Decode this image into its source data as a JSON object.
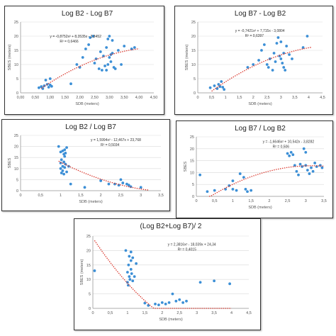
{
  "chart_data": [
    {
      "type": "scatter",
      "title": "Log B2 - Log B7",
      "xlabel": "SDB (meters)",
      "ylabel": "SBES (meters)",
      "xlim": [
        0,
        4.5
      ],
      "ylim": [
        0,
        25
      ],
      "xticks": [
        "0,00",
        "0,50",
        "1,00",
        "1,50",
        "2,00",
        "2,50",
        "3,00",
        "3,50",
        "4,00",
        "4,50"
      ],
      "yticks": [
        "0",
        "5",
        "10",
        "15",
        "20",
        "25"
      ],
      "trend": {
        "a": -0.8752,
        "b": 8.3535,
        "c": -3.8452,
        "xmin": 0.7,
        "xmax": 4.0
      },
      "annotations": [
        "y = -0,8752x² + 8,3535x - 3,8452",
        "R² = 0,6466"
      ],
      "points": [
        [
          0.62,
          1.8
        ],
        [
          0.7,
          2.2
        ],
        [
          0.75,
          1.5
        ],
        [
          0.8,
          2.5
        ],
        [
          0.85,
          4.5
        ],
        [
          0.9,
          3.0
        ],
        [
          0.95,
          2.0
        ],
        [
          1.0,
          2.8
        ],
        [
          1.05,
          2.3
        ],
        [
          1.0,
          5.0
        ],
        [
          1.7,
          3.2
        ],
        [
          1.9,
          10.0
        ],
        [
          2.0,
          9.0
        ],
        [
          2.1,
          12.5
        ],
        [
          2.2,
          15.5
        ],
        [
          2.3,
          17.0
        ],
        [
          2.35,
          19.5
        ],
        [
          2.45,
          20.0
        ],
        [
          2.5,
          10.5
        ],
        [
          2.55,
          12.0
        ],
        [
          2.65,
          8.5
        ],
        [
          2.7,
          14.5
        ],
        [
          2.75,
          8.0
        ],
        [
          2.8,
          13.0
        ],
        [
          2.85,
          9.5
        ],
        [
          2.9,
          16.0
        ],
        [
          2.95,
          19.0
        ],
        [
          3.0,
          20.0
        ],
        [
          3.0,
          12.5
        ],
        [
          3.05,
          13.5
        ],
        [
          3.1,
          14.0
        ],
        [
          3.05,
          11.0
        ],
        [
          3.1,
          18.5
        ],
        [
          3.15,
          9.0
        ],
        [
          2.9,
          8.0
        ],
        [
          2.95,
          10.0
        ],
        [
          3.2,
          8.5
        ],
        [
          3.3,
          15.0
        ],
        [
          3.4,
          10.0
        ],
        [
          3.5,
          16.5
        ],
        [
          3.75,
          15.5
        ],
        [
          3.85,
          16.0
        ]
      ]
    },
    {
      "type": "scatter",
      "title": "Log B7 - Log B2",
      "xlabel": "SDB (meters)",
      "ylabel": "SBES (meters)",
      "xlim": [
        0,
        4.5
      ],
      "ylim": [
        0,
        25
      ],
      "xticks": [
        "0",
        "0,5",
        "1",
        "1,5",
        "2",
        "2,5",
        "3",
        "3,5",
        "4",
        "4,5"
      ],
      "yticks": [
        "0",
        "5",
        "10",
        "15",
        "20",
        "25"
      ],
      "trend": {
        "a": -0.7421,
        "b": 7.715,
        "c": -3.0804,
        "xmin": 0.5,
        "xmax": 4.1
      },
      "annotations": [
        "y = -0,7421x² + 7,715x - 3,0804",
        "R² = 0,6397"
      ],
      "points": [
        [
          0.45,
          1.8
        ],
        [
          0.6,
          2.5
        ],
        [
          0.7,
          1.5
        ],
        [
          0.75,
          3.0
        ],
        [
          0.8,
          2.2
        ],
        [
          0.85,
          4.0
        ],
        [
          0.9,
          2.0
        ],
        [
          0.95,
          1.2
        ],
        [
          1.8,
          9.0
        ],
        [
          2.0,
          10.0
        ],
        [
          2.2,
          11.5
        ],
        [
          2.3,
          15.0
        ],
        [
          2.4,
          17.0
        ],
        [
          2.5,
          10.0
        ],
        [
          2.55,
          9.0
        ],
        [
          2.6,
          12.0
        ],
        [
          2.7,
          8.0
        ],
        [
          2.75,
          14.0
        ],
        [
          2.8,
          11.0
        ],
        [
          2.85,
          17.5
        ],
        [
          2.9,
          19.5
        ],
        [
          2.95,
          13.0
        ],
        [
          3.0,
          18.0
        ],
        [
          3.0,
          12.0
        ],
        [
          3.05,
          10.5
        ],
        [
          3.1,
          9.0
        ],
        [
          3.1,
          14.0
        ],
        [
          3.15,
          8.0
        ],
        [
          3.2,
          16.5
        ],
        [
          3.3,
          13.5
        ],
        [
          3.4,
          12.0
        ],
        [
          3.8,
          16.0
        ],
        [
          3.95,
          20.0
        ]
      ]
    },
    {
      "type": "scatter",
      "title": "Log B2 / Log B7",
      "xlabel": "SDB (meters)",
      "ylabel": "SBES",
      "xlim": [
        0,
        3.5
      ],
      "ylim": [
        0,
        25
      ],
      "xticks": [
        "0",
        "0,5",
        "1",
        "1,5",
        "2",
        "2,5",
        "3",
        "3,5"
      ],
      "yticks": [
        "0",
        "5",
        "10",
        "15",
        "20",
        "25"
      ],
      "trend": {
        "a": 1.5994,
        "b": -12.467,
        "c": 23.768,
        "xmin": 0.95,
        "xmax": 3.2
      },
      "annotations": [
        "y = 1,5994x² - 12,467x + 23,768",
        "R² = 0,5034"
      ],
      "points": [
        [
          0.95,
          20.0
        ],
        [
          1.0,
          17.5
        ],
        [
          1.0,
          12.5
        ],
        [
          1.0,
          10.0
        ],
        [
          1.02,
          8.0
        ],
        [
          1.02,
          14.0
        ],
        [
          1.05,
          18.0
        ],
        [
          1.05,
          11.0
        ],
        [
          1.05,
          9.0
        ],
        [
          1.08,
          16.5
        ],
        [
          1.08,
          13.0
        ],
        [
          1.08,
          7.5
        ],
        [
          1.1,
          18.5
        ],
        [
          1.1,
          15.5
        ],
        [
          1.1,
          10.5
        ],
        [
          1.12,
          17.0
        ],
        [
          1.12,
          12.0
        ],
        [
          1.15,
          19.5
        ],
        [
          1.15,
          8.5
        ],
        [
          1.2,
          11.0
        ],
        [
          1.25,
          3.0
        ],
        [
          1.6,
          1.5
        ],
        [
          2.0,
          4.5
        ],
        [
          2.2,
          3.0
        ],
        [
          2.35,
          3.0
        ],
        [
          2.45,
          2.5
        ],
        [
          2.55,
          3.5
        ],
        [
          2.65,
          3.0
        ],
        [
          2.7,
          2.5
        ],
        [
          2.75,
          1.8
        ],
        [
          3.0,
          1.5
        ],
        [
          2.5,
          5.0
        ]
      ]
    },
    {
      "type": "scatter",
      "title": "Log B7 / Log B2",
      "xlabel": "SDB (meters)",
      "ylabel": "SBES",
      "xlim": [
        0,
        3.5
      ],
      "ylim": [
        0,
        25
      ],
      "xticks": [
        "0",
        "0,5",
        "1",
        "1,5",
        "2",
        "2,5",
        "3",
        "3,5"
      ],
      "yticks": [
        "0",
        "5",
        "10",
        "15",
        "20",
        "25"
      ],
      "trend": {
        "a": -1.6646,
        "b": 10.542,
        "c": -3.8282,
        "xmin": 0.35,
        "xmax": 3.5
      },
      "annotations": [
        "y = -1,6646x² + 10,542x - 3,8282",
        "R² = 0,506"
      ],
      "points": [
        [
          0.1,
          9.0
        ],
        [
          0.3,
          2.0
        ],
        [
          0.5,
          2.5
        ],
        [
          0.8,
          3.0
        ],
        [
          0.9,
          4.5
        ],
        [
          1.0,
          3.0
        ],
        [
          1.0,
          6.5
        ],
        [
          1.1,
          2.5
        ],
        [
          1.2,
          9.5
        ],
        [
          1.3,
          8.0
        ],
        [
          1.35,
          3.0
        ],
        [
          1.4,
          2.0
        ],
        [
          1.5,
          2.5
        ],
        [
          2.5,
          18.0
        ],
        [
          2.55,
          17.0
        ],
        [
          2.6,
          18.5
        ],
        [
          2.65,
          17.5
        ],
        [
          2.7,
          13.0
        ],
        [
          2.75,
          10.5
        ],
        [
          2.8,
          9.0
        ],
        [
          2.85,
          13.5
        ],
        [
          2.9,
          12.5
        ],
        [
          2.95,
          20.0
        ],
        [
          3.0,
          18.5
        ],
        [
          3.0,
          13.0
        ],
        [
          3.05,
          11.0
        ],
        [
          3.1,
          9.5
        ],
        [
          3.15,
          12.0
        ],
        [
          3.2,
          10.5
        ],
        [
          3.25,
          14.0
        ],
        [
          3.3,
          12.5
        ],
        [
          3.4,
          13.0
        ],
        [
          3.45,
          12.0
        ]
      ]
    },
    {
      "type": "scatter",
      "title": "(Log B2+Log B7)/ 2",
      "xlabel": "SDB (meters)",
      "ylabel": "SBES (meters)",
      "xlim": [
        0,
        4.5
      ],
      "ylim": [
        0,
        25
      ],
      "xticks": [
        "0",
        "0,5",
        "1",
        "1,5",
        "2",
        "2,5",
        "3",
        "3,5",
        "4",
        "4,5"
      ],
      "yticks": [
        "0",
        "5",
        "10",
        "15",
        "20",
        "25"
      ],
      "trend": {
        "a": 2.3816,
        "b": -18.039,
        "c": 24.34,
        "xmin": 0.05,
        "xmax": 4.0
      },
      "annotations": [
        "y = 2,3816x² - 18,039x + 24,34",
        "R² = 0,4015"
      ],
      "points": [
        [
          0.05,
          13.0
        ],
        [
          0.95,
          20.0
        ],
        [
          1.0,
          12.5
        ],
        [
          1.0,
          9.0
        ],
        [
          1.02,
          8.0
        ],
        [
          1.03,
          15.0
        ],
        [
          1.05,
          18.0
        ],
        [
          1.05,
          11.0
        ],
        [
          1.07,
          10.0
        ],
        [
          1.1,
          19.5
        ],
        [
          1.1,
          16.5
        ],
        [
          1.1,
          13.5
        ],
        [
          1.12,
          12.0
        ],
        [
          1.15,
          17.5
        ],
        [
          1.15,
          9.5
        ],
        [
          1.2,
          11.0
        ],
        [
          1.25,
          15.5
        ],
        [
          1.5,
          1.8
        ],
        [
          1.6,
          1.0
        ],
        [
          1.8,
          1.5
        ],
        [
          1.9,
          1.2
        ],
        [
          2.0,
          2.0
        ],
        [
          2.1,
          1.5
        ],
        [
          2.2,
          2.0
        ],
        [
          2.3,
          5.0
        ],
        [
          2.4,
          2.5
        ],
        [
          2.5,
          3.0
        ],
        [
          2.6,
          2.0
        ],
        [
          2.7,
          2.5
        ],
        [
          3.1,
          9.0
        ],
        [
          3.5,
          9.5
        ],
        [
          3.95,
          8.5
        ]
      ]
    }
  ]
}
